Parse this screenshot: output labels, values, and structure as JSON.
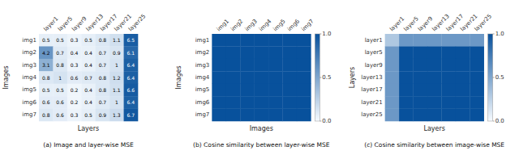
{
  "chart_data": [
    {
      "type": "heatmap",
      "title": "(a) Image and layer-wise MSE",
      "x_label": "Layers",
      "y_label": "Images",
      "x_categories": [
        "layer1",
        "layer5",
        "layer9",
        "layer13",
        "layer17",
        "layer21",
        "layer25"
      ],
      "y_categories": [
        "img1",
        "img2",
        "img3",
        "img4",
        "img5",
        "img6",
        "img7"
      ],
      "values": [
        [
          0.5,
          0.5,
          0.3,
          0.5,
          0.8,
          1.1,
          6.5
        ],
        [
          4.2,
          0.7,
          0.4,
          0.4,
          0.7,
          0.9,
          6.1
        ],
        [
          3.1,
          0.8,
          0.3,
          0.4,
          0.7,
          1.0,
          6.4
        ],
        [
          0.8,
          1.0,
          0.6,
          0.7,
          0.8,
          1.2,
          6.4
        ],
        [
          0.5,
          0.5,
          0.2,
          0.4,
          0.8,
          1.1,
          6.6
        ],
        [
          0.6,
          0.6,
          0.2,
          0.4,
          0.7,
          1.0,
          6.4
        ],
        [
          0.8,
          0.6,
          0.3,
          0.5,
          0.9,
          1.3,
          6.7
        ]
      ],
      "color_range": [
        0,
        7
      ],
      "color": "#08519c",
      "data_labels": true
    },
    {
      "type": "heatmap",
      "title": "(b) Cosine similarity between layer-wise MSE",
      "x_label": "Images",
      "y_label": "Images",
      "x_categories": [
        "img1",
        "img2",
        "img3",
        "img4",
        "img5",
        "img6",
        "img7"
      ],
      "y_categories": [
        "img1",
        "img2",
        "img3",
        "img4",
        "img5",
        "img6",
        "img7"
      ],
      "values": [
        [
          1.0,
          1.0,
          1.0,
          1.0,
          1.0,
          1.0,
          1.0
        ],
        [
          1.0,
          1.0,
          1.0,
          1.0,
          1.0,
          1.0,
          1.0
        ],
        [
          1.0,
          1.0,
          1.0,
          1.0,
          1.0,
          1.0,
          1.0
        ],
        [
          1.0,
          1.0,
          1.0,
          1.0,
          1.0,
          1.0,
          1.0
        ],
        [
          1.0,
          1.0,
          1.0,
          1.0,
          1.0,
          1.0,
          1.0
        ],
        [
          1.0,
          1.0,
          1.0,
          1.0,
          1.0,
          1.0,
          1.0
        ],
        [
          1.0,
          1.0,
          1.0,
          1.0,
          1.0,
          1.0,
          1.0
        ]
      ],
      "color_range": [
        0,
        1
      ],
      "color": "#08519c",
      "color_ticks": [
        {
          "value": 0,
          "label": "0.0"
        },
        {
          "value": 0.5,
          "label": "0.5"
        },
        {
          "value": 1,
          "label": "1.0"
        }
      ]
    },
    {
      "type": "heatmap",
      "title": "(c) Cosine similarity between image-wise MSE",
      "x_label": "Layers",
      "y_label": "Layers",
      "x_categories": [
        "layer1",
        "layer5",
        "layer9",
        "layer13",
        "layer17",
        "layer21",
        "layer25"
      ],
      "y_categories": [
        "layer1",
        "layer5",
        "layer9",
        "layer13",
        "layer17",
        "layer21",
        "layer25"
      ],
      "values": [
        [
          0.3,
          0.58,
          0.58,
          0.58,
          0.58,
          0.58,
          0.58
        ],
        [
          0.58,
          1.0,
          1.0,
          1.0,
          1.0,
          1.0,
          1.0
        ],
        [
          0.58,
          1.0,
          1.0,
          1.0,
          1.0,
          1.0,
          1.0
        ],
        [
          0.58,
          1.0,
          1.0,
          1.0,
          1.0,
          1.0,
          1.0
        ],
        [
          0.58,
          1.0,
          1.0,
          1.0,
          1.0,
          1.0,
          1.0
        ],
        [
          0.58,
          1.0,
          1.0,
          1.0,
          1.0,
          1.0,
          1.0
        ],
        [
          0.58,
          1.0,
          1.0,
          1.0,
          1.0,
          1.0,
          1.0
        ]
      ],
      "color_range": [
        0,
        1
      ],
      "color": "#08519c",
      "color_ticks": [
        {
          "value": 0,
          "label": "0.0"
        },
        {
          "value": 0.5,
          "label": "0.5"
        },
        {
          "value": 1,
          "label": "1.0"
        }
      ]
    }
  ]
}
